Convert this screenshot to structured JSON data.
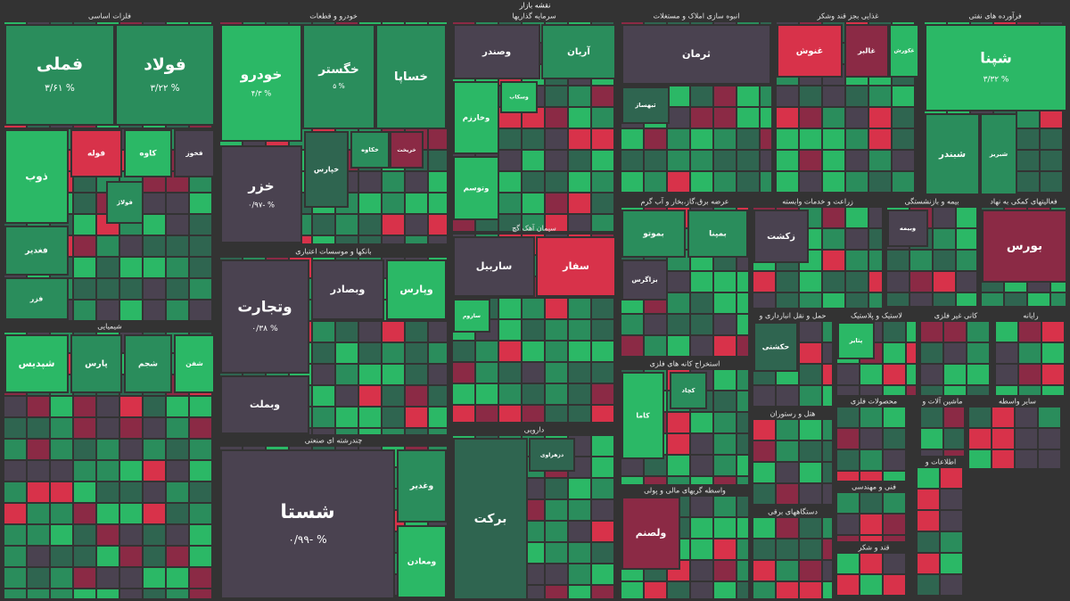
{
  "title": "نقشه بازار",
  "sectors": [
    {
      "name": "فلزات اساسی",
      "tiles": [
        {
          "name": "فملی",
          "label": "% ۳/۶۱"
        },
        {
          "name": "فولاد",
          "label": "% ۳/۲۲"
        },
        {
          "name": "ذوب"
        },
        {
          "name": "فوله"
        },
        {
          "name": "کاوه"
        },
        {
          "name": "فخوز"
        },
        {
          "name": "فولاژ"
        },
        {
          "name": "فغدیر"
        },
        {
          "name": "فزر"
        }
      ]
    },
    {
      "name": "خودرو و قطعات",
      "tiles": [
        {
          "name": "خودرو",
          "label": "% ۴/۳"
        },
        {
          "name": "خگستر",
          "label": "% ۵"
        },
        {
          "name": "خساپا"
        },
        {
          "name": "خزر",
          "label": "% -۰/۹۷"
        },
        {
          "name": "خپارس"
        },
        {
          "name": "خکاوه"
        },
        {
          "name": "خریخت"
        }
      ]
    },
    {
      "name": "سرمایه گذاریها",
      "tiles": [
        {
          "name": "وصندر"
        },
        {
          "name": "آریان"
        },
        {
          "name": "وخارزم"
        },
        {
          "name": "وسکاب"
        },
        {
          "name": "وتوسم"
        }
      ]
    },
    {
      "name": "انبوه سازی املاک و مستغلات",
      "tiles": [
        {
          "name": "ثرمان"
        },
        {
          "name": "ثبهساز"
        }
      ]
    },
    {
      "name": "غذایی بجز قند وشکر",
      "tiles": [
        {
          "name": "غنوش"
        },
        {
          "name": "غالبر"
        },
        {
          "name": "غکورش"
        }
      ]
    },
    {
      "name": "فرآورده های نفتی",
      "tiles": [
        {
          "name": "شپنا",
          "label": "% ۳/۳۲"
        },
        {
          "name": "شبندر"
        },
        {
          "name": "شبریز"
        }
      ]
    },
    {
      "name": "شیمیایی",
      "tiles": [
        {
          "name": "شپدیس"
        },
        {
          "name": "پارس"
        },
        {
          "name": "شجم"
        },
        {
          "name": "شفن"
        }
      ]
    },
    {
      "name": "بانکها و موسسات اعتباری",
      "tiles": [
        {
          "name": "وتجارت",
          "label": "% ۰/۳۸"
        },
        {
          "name": "وبصادر"
        },
        {
          "name": "وپارس"
        },
        {
          "name": "وبملت"
        }
      ]
    },
    {
      "name": "سیمان آهک گچ",
      "tiles": [
        {
          "name": "ساربیل"
        },
        {
          "name": "سفار"
        },
        {
          "name": "ساروم"
        }
      ]
    },
    {
      "name": "چندرشته ای صنعتی",
      "tiles": [
        {
          "name": "شستا",
          "label": "% -۰/۹۹"
        },
        {
          "name": "وغدیر"
        },
        {
          "name": "ومعادن"
        }
      ]
    },
    {
      "name": "دارویی",
      "tiles": [
        {
          "name": "برکت"
        },
        {
          "name": "دزهراوی"
        }
      ]
    },
    {
      "name": "عرضه برق،گاز،بخار و آب گرم",
      "tiles": [
        {
          "name": "بموتو"
        },
        {
          "name": "بمپنا"
        },
        {
          "name": "بزاگرس"
        }
      ]
    },
    {
      "name": "زراعت و خدمات وابسته",
      "tiles": [
        {
          "name": "زکشت"
        }
      ]
    },
    {
      "name": "بیمه و بازنشستگی",
      "tiles": [
        {
          "name": "وبیمه"
        }
      ]
    },
    {
      "name": "فعالیتهای کمکی به نهاد",
      "tiles": [
        {
          "name": "بورس"
        }
      ]
    },
    {
      "name": "استخراج کانه های فلزی",
      "tiles": [
        {
          "name": "کاما"
        },
        {
          "name": "کچاد"
        }
      ]
    },
    {
      "name": "واسطه گریهای مالی و پولی",
      "tiles": [
        {
          "name": "ولصنم"
        }
      ]
    },
    {
      "name": "حمل و نقل انبارداری و",
      "tiles": [
        {
          "name": "حکشتی"
        }
      ]
    },
    {
      "name": "لاستیک و پلاستیک",
      "tiles": [
        {
          "name": "پتایر"
        }
      ]
    },
    {
      "name": "کانی غیر فلزی",
      "tiles": []
    },
    {
      "name": "رایانه",
      "tiles": []
    },
    {
      "name": "هتل و رستوران",
      "tiles": []
    },
    {
      "name": "محصولات فلزی",
      "tiles": []
    },
    {
      "name": "ماشین آلات و",
      "tiles": []
    },
    {
      "name": "سایر واسطه",
      "tiles": []
    },
    {
      "name": "دستگاههای برقی",
      "tiles": []
    },
    {
      "name": "فنی و مهندسی",
      "tiles": []
    },
    {
      "name": "قند و شکر",
      "tiles": []
    },
    {
      "name": "اطلاعات و",
      "tiles": []
    }
  ]
}
